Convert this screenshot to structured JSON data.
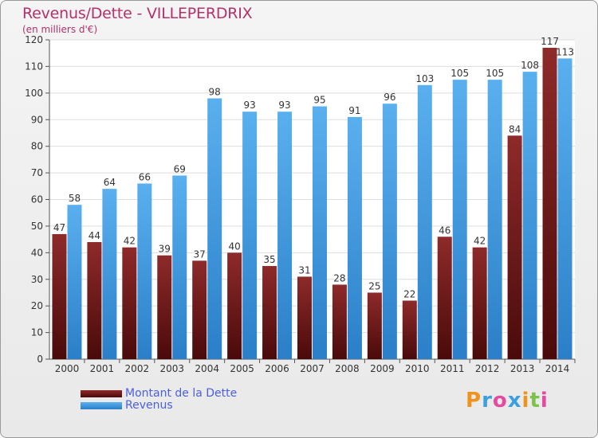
{
  "chart_data": {
    "type": "bar",
    "title": "Revenus/Dette - VILLEPERDRIX",
    "subtitle": "(en milliers d'€)",
    "categories": [
      "2000",
      "2001",
      "2002",
      "2003",
      "2004",
      "2005",
      "2006",
      "2007",
      "2008",
      "2009",
      "2010",
      "2011",
      "2012",
      "2013",
      "2014"
    ],
    "series": [
      {
        "name": "Montant de la Dette",
        "color": "#7a1c1c",
        "values": [
          47,
          44,
          42,
          39,
          37,
          40,
          35,
          31,
          28,
          25,
          22,
          46,
          42,
          84,
          117
        ]
      },
      {
        "name": "Revenus",
        "color": "#3c9be3",
        "values": [
          58,
          64,
          66,
          69,
          98,
          93,
          93,
          95,
          91,
          96,
          103,
          105,
          105,
          108,
          113
        ]
      }
    ],
    "ylim": [
      0,
      120
    ],
    "yticks": [
      0,
      10,
      20,
      30,
      40,
      50,
      60,
      70,
      80,
      90,
      100,
      110,
      120
    ],
    "grid": true,
    "legend_position": "bottom-left"
  },
  "legend": {
    "debt_label": "Montant de la Dette",
    "revenue_label": "Revenus"
  },
  "brand": {
    "letters": [
      "P",
      "r",
      "o",
      "x",
      "i",
      "t",
      "i"
    ],
    "colors": [
      "#f0921e",
      "#3ca0e0",
      "#e64aa0",
      "#3ca0e0",
      "#f0921e",
      "#7cc24a",
      "#e64aa0"
    ]
  }
}
